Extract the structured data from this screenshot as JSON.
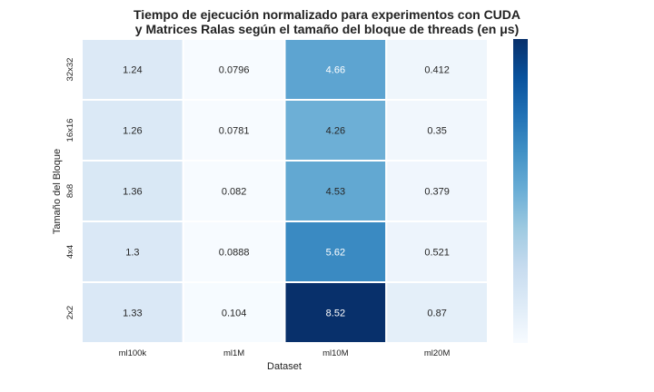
{
  "chart_data": {
    "type": "heatmap",
    "title_lines": [
      "Tiempo de ejecución normalizado para experimentos con CUDA",
      "y Matrices Ralas según el tamaño del bloque de threads (en μs)"
    ],
    "xlabel": "Dataset",
    "ylabel": "Tamaño del Bloque",
    "x_categories": [
      "ml100k",
      "ml1M",
      "ml10M",
      "ml20M"
    ],
    "y_categories": [
      "32x32",
      "16x16",
      "8x8",
      "4x4",
      "2x2"
    ],
    "values": [
      [
        1.24,
        0.0796,
        4.66,
        0.412
      ],
      [
        1.26,
        0.0781,
        4.26,
        0.35
      ],
      [
        1.36,
        0.082,
        4.53,
        0.379
      ],
      [
        1.3,
        0.0888,
        5.62,
        0.521
      ],
      [
        1.33,
        0.104,
        8.52,
        0.87
      ]
    ],
    "value_labels": [
      [
        "1.24",
        "0.0796",
        "4.66",
        "0.412"
      ],
      [
        "1.26",
        "0.0781",
        "4.26",
        "0.35"
      ],
      [
        "1.36",
        "0.082",
        "4.53",
        "0.379"
      ],
      [
        "1.3",
        "0.0888",
        "5.62",
        "0.521"
      ],
      [
        "1.33",
        "0.104",
        "8.52",
        "0.87"
      ]
    ],
    "colormap": "Blues",
    "colorbar": true,
    "colorbar_ticks": false,
    "cell_border_color": "#ffffff"
  }
}
